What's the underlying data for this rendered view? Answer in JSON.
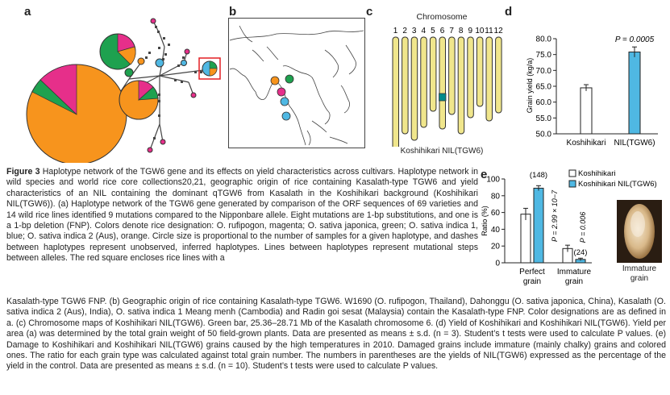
{
  "panels": {
    "a": "a",
    "b": "b",
    "c": "c",
    "d": "d",
    "e": "e"
  },
  "panel_c": {
    "title": "Chromosome",
    "chromosomes": [
      "1",
      "2",
      "3",
      "4",
      "5",
      "6",
      "7",
      "8",
      "9",
      "10",
      "11",
      "12"
    ],
    "footer": "Koshihikari NIL(TGW6)"
  },
  "chart_data": [
    {
      "type": "bar",
      "panel": "d",
      "categories": [
        "Koshihikari",
        "NIL(TGW6)"
      ],
      "values": [
        64.5,
        75.8
      ],
      "errors": [
        1.0,
        1.6
      ],
      "ylabel": "Grain yield (kg/a)",
      "ylim": [
        50,
        80
      ],
      "yticks": [
        "50.0",
        "55.0",
        "60.0",
        "65.0",
        "70.0",
        "75.0",
        "80.0"
      ],
      "annotation": "P = 0.0005",
      "colors": [
        "#ffffff",
        "#4fb8e3"
      ]
    },
    {
      "type": "bar",
      "panel": "e",
      "categories": [
        "Perfect grain",
        "Immature grain"
      ],
      "series": [
        {
          "name": "Koshihikari",
          "values": [
            58,
            17
          ],
          "errors": [
            7,
            4
          ]
        },
        {
          "name": "Koshihikari NIL(TGW6)",
          "values": [
            89,
            4
          ],
          "errors": [
            3,
            1.5
          ]
        }
      ],
      "ylabel": "Ratio (%)",
      "ylim": [
        0,
        100
      ],
      "yticks": [
        "0",
        "20",
        "40",
        "60",
        "80",
        "100"
      ],
      "annotations": [
        "(148)",
        "P = 2.99 × 10−7",
        "P = 0.006",
        "(24)"
      ],
      "colors": [
        "#ffffff",
        "#4fb8e3"
      ]
    }
  ],
  "panel_e_image_label": [
    "Immature",
    "grain"
  ],
  "caption": {
    "fig": "Figure 3",
    "para1": "Haplotype network of the TGW6 gene and its effects on yield characteristics across cultivars. Haplotype network in wild species and world rice core collections20,21, geographic origin of rice containing Kasalath-type TGW6 and yield characteristics of an NIL containing the dominant qTGW6 from Kasalath in the Koshihikari background (Koshihikari NIL(TGW6)). (a) Haplotype network of the TGW6 gene generated by comparison of the ORF sequences of 69 varieties and 14 wild rice lines identified 9 mutations compared to the Nipponbare allele. Eight mutations are 1-bp substitutions, and one is a 1-bp deletion (FNP). Colors denote rice designation: O. rufipogon, magenta; O. sativa japonica, green; O. sativa indica 1, blue; O. sativa indica 2 (Aus), orange. Circle size is proportional to the number of samples for a given haplotype, and dashes between haplotypes represent unobserved, inferred haplotypes. Lines between haplotypes represent mutational steps between alleles. The red square encloses rice lines with a",
    "para2": "Kasalath-type TGW6 FNP. (b) Geographic origin of rice containing Kasalath-type TGW6. W1690 (O. rufipogon, Thailand), Dahonggu (O. sativa japonica, China), Kasalath (O. sativa indica 2 (Aus), India), O. sativa indica 1 Meang menh (Cambodia) and Radin goi sesat (Malaysia) contain the Kasalath-type FNP. Color designations are as defined in a. (c) Chromosome maps of Koshihikari NIL(TGW6). Green bar, 25.36–28.71 Mb of the Kasalath chromosome 6. (d) Yield of Koshihikari and Koshihikari NIL(TGW6). Yield per area (a) was determined by the total grain weight of 50 field-grown plants. Data are presented as means ± s.d. (n = 3). Student’s t tests were used to calculate P values. (e) Damage to Koshihikari and Koshihikari NIL(TGW6) grains caused by the high temperatures in 2010. Damaged grains include immature (mainly chalky) grains and colored ones. The ratio for each grain type was calculated against total grain number. The numbers in parentheses are the yields of NIL(TGW6) expressed as the percentage of the yield in the control. Data are presented as means ± s.d. (n = 10). Student’s t tests were used to calculate P values."
  }
}
